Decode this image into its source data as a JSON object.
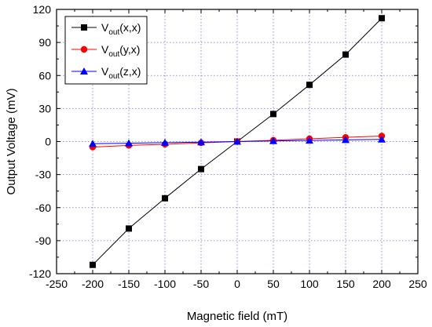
{
  "chart_data": {
    "type": "line",
    "xlabel": "Magnetic field (mT)",
    "ylabel": "Output Voltage (mV)",
    "xlim": [
      -250,
      250
    ],
    "ylim": [
      -120,
      120
    ],
    "xticks": [
      -250,
      -200,
      -150,
      -100,
      -50,
      0,
      50,
      100,
      150,
      200,
      250
    ],
    "yticks": [
      -120,
      -90,
      -60,
      -30,
      0,
      30,
      60,
      90,
      120
    ],
    "grid": true,
    "legend_position": "top-left",
    "x": [
      -200,
      -150,
      -100,
      -50,
      0,
      50,
      100,
      150,
      200
    ],
    "series": [
      {
        "name_base": "V",
        "name_sub": "out",
        "name_suffix": "(x,x)",
        "color": "#000000",
        "marker": "square",
        "values": [
          -112,
          -79,
          -51.5,
          -25,
          0,
          25,
          51.5,
          79,
          112
        ]
      },
      {
        "name_base": "V",
        "name_sub": "out",
        "name_suffix": "(y,x)",
        "color": "#ff0000",
        "marker": "circle",
        "values": [
          -5,
          -3.5,
          -2.5,
          -1.2,
          0,
          1.2,
          2.5,
          3.8,
          5
        ]
      },
      {
        "name_base": "V",
        "name_sub": "out",
        "name_suffix": "(z,x)",
        "color": "#0000ff",
        "marker": "triangle",
        "values": [
          -2,
          -1.5,
          -1,
          -0.5,
          0,
          0.5,
          1,
          1.5,
          2
        ]
      }
    ]
  }
}
